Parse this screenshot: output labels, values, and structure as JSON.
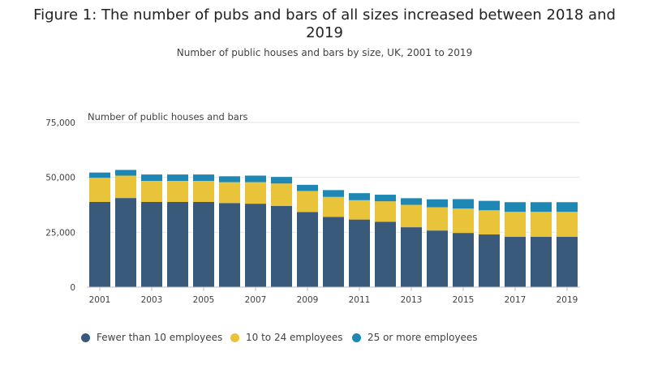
{
  "title": "Figure 1: The number of pubs and bars of all sizes increased between 2018 and 2019",
  "subtitle": "Number of public houses and bars by size, UK, 2001 to 2019",
  "legend": {
    "item_0": "Fewer than 10 employees",
    "item_1": "10 to 24 employees",
    "item_2": "25 or more employees"
  },
  "colors": {
    "fewer_than_10": "#3a5a7c",
    "ten_to_24": "#e9c33a",
    "twentyfive_plus": "#1f87b4",
    "grid": "#e6e6e6",
    "axis": "#bdbdbd"
  },
  "chart_data": {
    "type": "bar",
    "stacked": true,
    "title": "Figure 1: The number of pubs and bars of all sizes increased between 2018 and 2019",
    "subtitle": "Number of public houses and bars by size, UK, 2001 to 2019",
    "ylabel": "Number of public houses and bars",
    "xlabel": "",
    "ylim": [
      0,
      75000
    ],
    "yticks": [
      0,
      25000,
      50000,
      75000
    ],
    "ytick_labels": [
      "0",
      "25,000",
      "50,000",
      "75,000"
    ],
    "categories": [
      "2001",
      "2002",
      "2003",
      "2004",
      "2005",
      "2006",
      "2007",
      "2008",
      "2009",
      "2010",
      "2011",
      "2012",
      "2013",
      "2014",
      "2015",
      "2016",
      "2017",
      "2018",
      "2019"
    ],
    "xtick_labels": [
      "2001",
      "2003",
      "2005",
      "2007",
      "2009",
      "2011",
      "2013",
      "2015",
      "2017",
      "2019"
    ],
    "grid": true,
    "legend_position": "bottom",
    "series": [
      {
        "name": "Fewer than 10 employees",
        "values": [
          38800,
          40600,
          38800,
          38800,
          38800,
          38300,
          38000,
          37000,
          34200,
          32000,
          30800,
          29800,
          27300,
          25800,
          24700,
          24000,
          22900,
          22900,
          22900
        ]
      },
      {
        "name": "10 to 24 employees",
        "values": [
          11000,
          10200,
          9600,
          9600,
          9600,
          9500,
          9800,
          10200,
          9600,
          9100,
          8800,
          9300,
          10200,
          10600,
          11100,
          11000,
          11400,
          11400,
          11400
        ]
      },
      {
        "name": "25 or more employees",
        "values": [
          2400,
          2600,
          2900,
          2900,
          2900,
          2700,
          3000,
          3000,
          2800,
          3100,
          3200,
          3000,
          3000,
          3600,
          4300,
          4300,
          4400,
          4400,
          4400
        ]
      }
    ]
  }
}
